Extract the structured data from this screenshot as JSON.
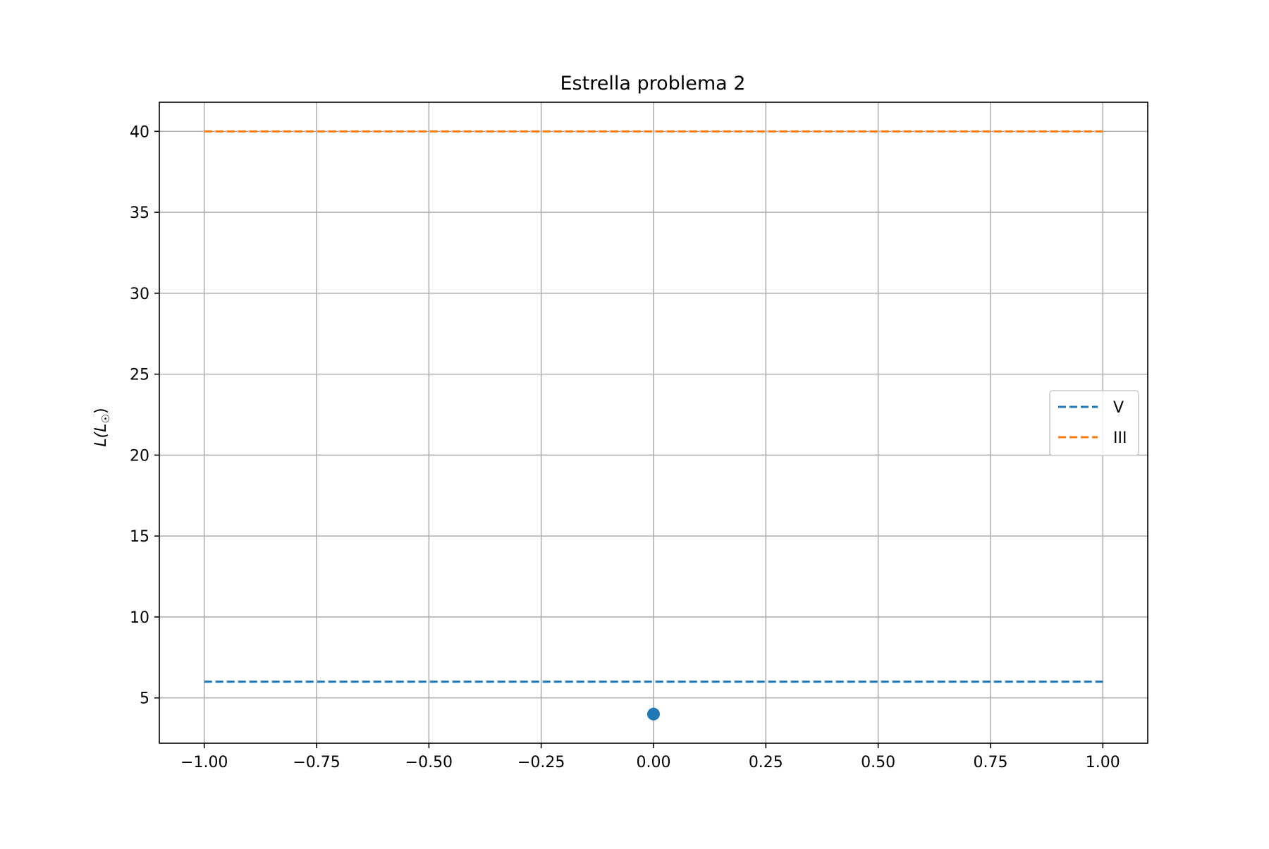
{
  "chart_data": {
    "type": "line",
    "title": "Estrella problema 2",
    "xlabel": "",
    "ylabel": "L(L☉)",
    "ylabel_parts": {
      "main": "L(L",
      "sub": "☉",
      "close": ")"
    },
    "xlim": [
      -1.1,
      1.1
    ],
    "ylim": [
      2.2,
      41.8
    ],
    "xticks": [
      -1.0,
      -0.75,
      -0.5,
      -0.25,
      0.0,
      0.25,
      0.5,
      0.75,
      1.0
    ],
    "xtick_labels": [
      "−1.00",
      "−0.75",
      "−0.50",
      "−0.25",
      "0.00",
      "0.25",
      "0.50",
      "0.75",
      "1.00"
    ],
    "yticks": [
      5,
      10,
      15,
      20,
      25,
      30,
      35,
      40
    ],
    "ytick_labels": [
      "5",
      "10",
      "15",
      "20",
      "25",
      "30",
      "35",
      "40"
    ],
    "grid": true,
    "legend_position": "center-right",
    "series": [
      {
        "name": "V",
        "style": "dashed",
        "color": "#1f77b4",
        "x": [
          -1.0,
          1.0
        ],
        "y": [
          6,
          6
        ]
      },
      {
        "name": "III",
        "style": "dashed",
        "color": "#ff7f0e",
        "x": [
          -1.0,
          1.0
        ],
        "y": [
          40,
          40
        ]
      }
    ],
    "points": [
      {
        "x": 0.0,
        "y": 4,
        "color": "#1f77b4"
      }
    ]
  }
}
